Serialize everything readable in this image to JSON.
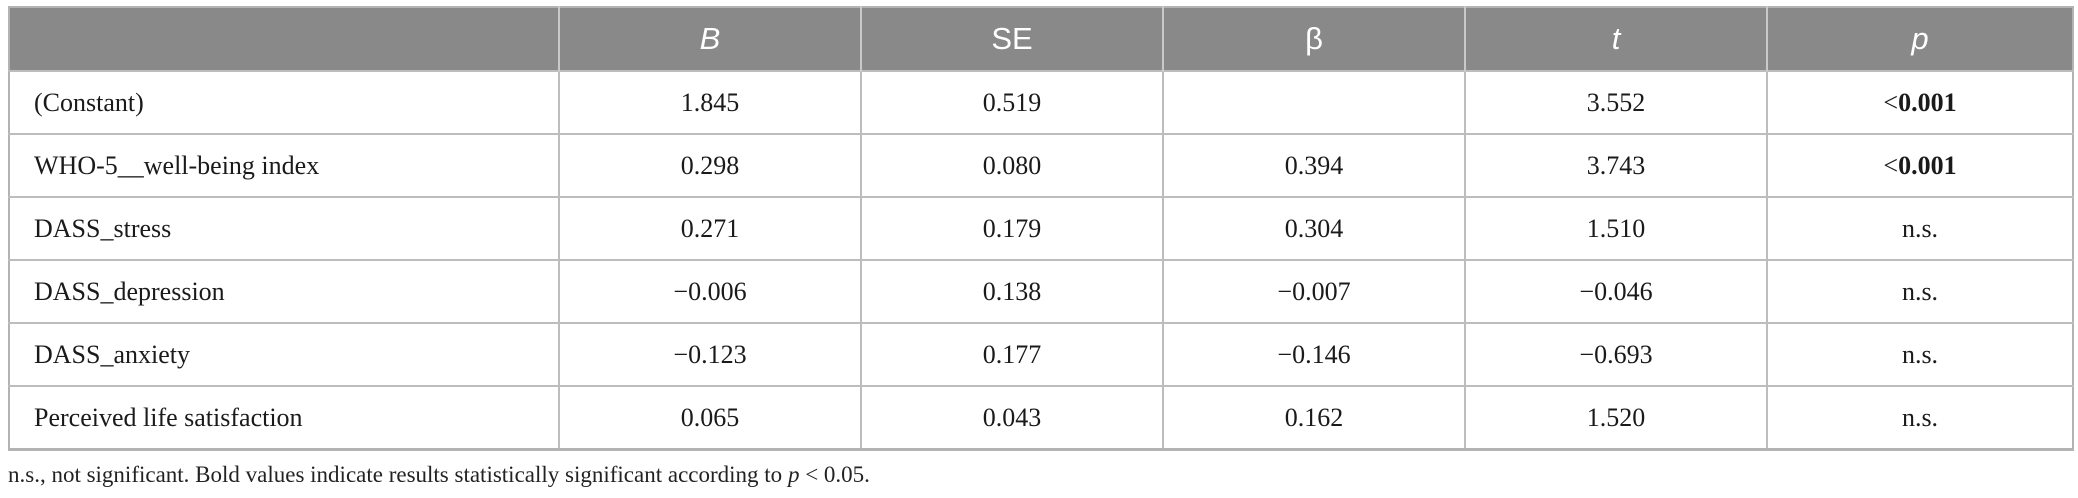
{
  "table": {
    "columns": [
      "",
      "B",
      "SE",
      "β",
      "t",
      "p"
    ],
    "italic_columns": [
      1,
      4,
      5
    ],
    "rows": [
      {
        "label": "(Constant)",
        "B": "1.845",
        "SE": "0.519",
        "beta": "",
        "t": "3.552",
        "p": {
          "prefix": "<",
          "value": "0.001",
          "bold": true
        }
      },
      {
        "label": "WHO-5__well-being index",
        "B": "0.298",
        "SE": "0.080",
        "beta": "0.394",
        "t": "3.743",
        "p": {
          "prefix": "<",
          "value": "0.001",
          "bold": true
        }
      },
      {
        "label": "DASS_stress",
        "B": "0.271",
        "SE": "0.179",
        "beta": "0.304",
        "t": "1.510",
        "p": {
          "prefix": "",
          "value": "n.s.",
          "bold": false
        }
      },
      {
        "label": "DASS_depression",
        "B": "−0.006",
        "SE": "0.138",
        "beta": "−0.007",
        "t": "−0.046",
        "p": {
          "prefix": "",
          "value": "n.s.",
          "bold": false
        }
      },
      {
        "label": "DASS_anxiety",
        "B": "−0.123",
        "SE": "0.177",
        "beta": "−0.146",
        "t": "−0.693",
        "p": {
          "prefix": "",
          "value": "n.s.",
          "bold": false
        }
      },
      {
        "label": "Perceived life satisfaction",
        "B": "0.065",
        "SE": "0.043",
        "beta": "0.162",
        "t": "1.520",
        "p": {
          "prefix": "",
          "value": "n.s.",
          "bold": false
        }
      }
    ]
  },
  "footnote": {
    "before": "n.s., not significant. Bold values indicate results statistically significant according to ",
    "p_symbol": "p",
    "after": " < 0.05."
  },
  "colors": {
    "header_bg": "#898989",
    "header_text": "#ffffff",
    "border": "#bdbdbd"
  }
}
